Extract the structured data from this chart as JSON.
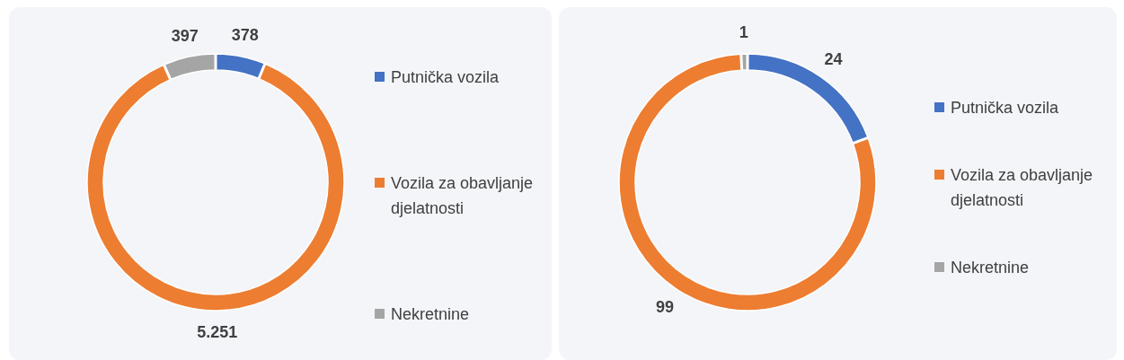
{
  "chart_data": [
    {
      "type": "donut",
      "categories": [
        "Putnička vozila",
        "Vozila za obavljanje djelatnosti",
        "Nekretnine"
      ],
      "values": [
        378,
        5251,
        397
      ],
      "colors": [
        "#4472c4",
        "#ed7d31",
        "#a5a5a5"
      ],
      "value_labels": [
        "378",
        "5.251",
        "397"
      ],
      "legend": "right"
    },
    {
      "type": "donut",
      "categories": [
        "Putnička vozila",
        "Vozila za obavljanje djelatnosti",
        "Nekretnine"
      ],
      "values": [
        24,
        99,
        1
      ],
      "colors": [
        "#4472c4",
        "#ed7d31",
        "#a5a5a5"
      ],
      "value_labels": [
        "24",
        "99",
        "1"
      ],
      "legend": "right"
    }
  ]
}
